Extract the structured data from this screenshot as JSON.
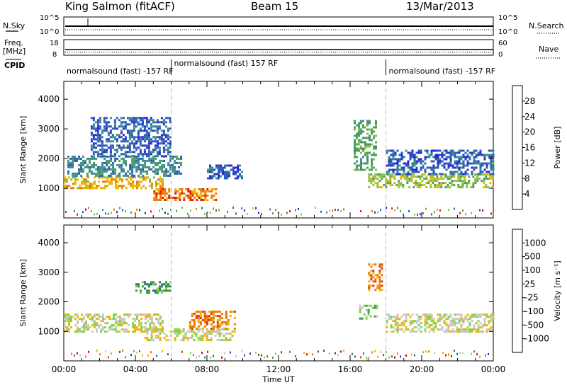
{
  "header": {
    "station": "King Salmon (fitACF)",
    "beam": "Beam 15",
    "date": "13/Mar/2013"
  },
  "params": {
    "nsky_label": "N.Sky",
    "nsearch_label": "N.Search",
    "freq_label_1": "Freq.",
    "freq_label_2": "[MHz]",
    "nave_label": "Nave",
    "cpid_label": "CPID",
    "left_noise_ticks": [
      "10^5",
      "10^0"
    ],
    "right_noise_ticks": [
      "10^5",
      "10^0"
    ],
    "freq_ticks": [
      "18",
      "8"
    ],
    "nave_ticks": [
      "60",
      "0"
    ]
  },
  "cpid_segments": [
    {
      "label": "normalsound (fast) -157 RF",
      "start_hour": 0.0
    },
    {
      "label": "normalsound (fast) 157 RF",
      "start_hour": 6.0
    },
    {
      "label": "normalsound (fast) -157 RF",
      "start_hour": 18.0
    }
  ],
  "chart_data": [
    {
      "type": "heatmap",
      "panel": "power",
      "ylabel": "Slant Range [km]",
      "xlim": [
        0,
        24
      ],
      "ylim": [
        0,
        4600
      ],
      "yticks": [
        1000,
        2000,
        3000,
        4000
      ],
      "colorbar": {
        "label": "Power [dB]",
        "ticks": [
          "4",
          "8",
          "12",
          "16",
          "20",
          "24",
          "28"
        ],
        "colors": [
          "#2a2ad8",
          "#2e5fb4",
          "#3d8d8d",
          "#4ca060",
          "#8fc23b",
          "#f0b400",
          "#f07a00",
          "#e02000"
        ]
      },
      "regions": [
        {
          "x": [
            0.0,
            5.5
          ],
          "y": [
            1000,
            1400
          ],
          "level": 5
        },
        {
          "x": [
            0.2,
            6.5
          ],
          "y": [
            1400,
            2100
          ],
          "level": 2
        },
        {
          "x": [
            1.5,
            6.0
          ],
          "y": [
            2100,
            3400
          ],
          "level": 1
        },
        {
          "x": [
            5.0,
            8.5
          ],
          "y": [
            600,
            1000
          ],
          "level": 6
        },
        {
          "x": [
            8.0,
            10.0
          ],
          "y": [
            1300,
            1800
          ],
          "level": 1
        },
        {
          "x": [
            16.2,
            17.5
          ],
          "y": [
            1600,
            3300
          ],
          "level": 3
        },
        {
          "x": [
            17.0,
            24.0
          ],
          "y": [
            1000,
            1500
          ],
          "level": 4
        },
        {
          "x": [
            18.0,
            24.0
          ],
          "y": [
            1500,
            2300
          ],
          "level": 1
        }
      ]
    },
    {
      "type": "heatmap",
      "panel": "velocity",
      "ylabel": "Slant Range [km]",
      "xlabel": "Time UT",
      "xlim": [
        0,
        24
      ],
      "ylim": [
        0,
        4600
      ],
      "yticks": [
        1000,
        2000,
        3000,
        4000
      ],
      "xticks": [
        "00:00",
        "04:00",
        "08:00",
        "12:00",
        "16:00",
        "20:00",
        "00:00"
      ],
      "colorbar": {
        "label": "Velocity [m s⁻¹]",
        "ticks": [
          "1000",
          "500",
          "100",
          "25",
          "-25",
          "-100",
          "-500",
          "-1000"
        ],
        "colors": [
          "#2340c0",
          "#2e6c78",
          "#3c9a3c",
          "#7ad63a",
          "#c8c8c8",
          "#f0b400",
          "#f07800",
          "#e03a10",
          "#e00000"
        ]
      },
      "regions": [
        {
          "x": [
            0.0,
            5.5
          ],
          "y": [
            1000,
            1600
          ],
          "level": 4
        },
        {
          "x": [
            4.5,
            9.5
          ],
          "y": [
            700,
            1100
          ],
          "level": 4
        },
        {
          "x": [
            7.0,
            9.5
          ],
          "y": [
            1100,
            1700
          ],
          "level": 6
        },
        {
          "x": [
            4.0,
            6.0
          ],
          "y": [
            2300,
            2700
          ],
          "level": 2
        },
        {
          "x": [
            16.5,
            17.5
          ],
          "y": [
            1400,
            1900
          ],
          "level": 3
        },
        {
          "x": [
            17.0,
            17.8
          ],
          "y": [
            2400,
            3300
          ],
          "level": 6
        },
        {
          "x": [
            18.0,
            24.0
          ],
          "y": [
            1000,
            1600
          ],
          "level": 4
        }
      ]
    }
  ]
}
